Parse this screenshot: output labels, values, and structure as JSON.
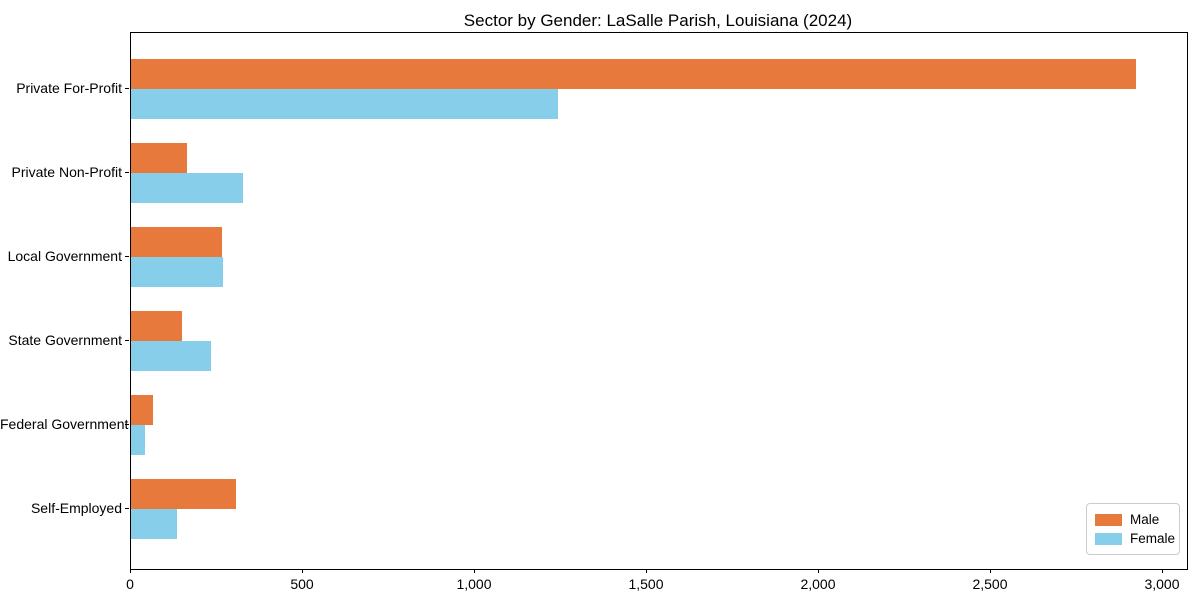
{
  "chart_data": {
    "type": "bar",
    "orientation": "horizontal",
    "title": "Sector by Gender: LaSalle Parish, Louisiana (2024)",
    "categories": [
      "Private For-Profit",
      "Private Non-Profit",
      "Local Government",
      "State Government",
      "Federal Government",
      "Self-Employed"
    ],
    "series": [
      {
        "name": "Male",
        "color": "#E8793C",
        "values": [
          2921,
          163,
          265,
          148,
          64,
          305
        ]
      },
      {
        "name": "Female",
        "color": "#87CEEB",
        "values": [
          1241,
          326,
          267,
          233,
          42,
          134
        ]
      }
    ],
    "xlabel": "",
    "ylabel": "",
    "xlim": [
      0,
      3000
    ],
    "xticks": [
      0,
      500,
      1000,
      1500,
      2000,
      2500,
      3000
    ],
    "xtick_labels": [
      "0",
      "500",
      "1,000",
      "1,500",
      "2,000",
      "2,500",
      "3,000"
    ],
    "grid": false,
    "legend": {
      "position": "lower right"
    }
  }
}
